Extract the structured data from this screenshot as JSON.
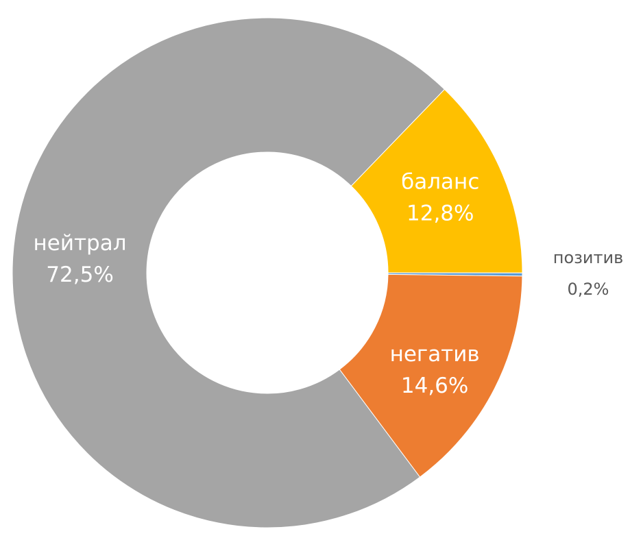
{
  "chart_data": {
    "type": "donut",
    "categories": [
      "баланс",
      "позитив",
      "негатив",
      "нейтрал"
    ],
    "values": [
      12.8,
      0.2,
      14.6,
      72.5
    ],
    "value_labels": [
      "12,8%",
      "0,2%",
      "14,6%",
      "72,5%"
    ],
    "colors": [
      "#ffc000",
      "#5b9bd5",
      "#ed7d31",
      "#a5a5a5"
    ],
    "start_angle": 44
  }
}
